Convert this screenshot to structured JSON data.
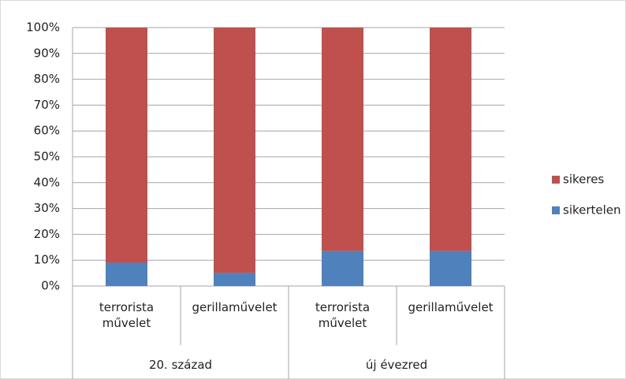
{
  "chart_data": {
    "type": "stacked_bar_100",
    "groups": [
      {
        "name": "20. század",
        "categories": [
          "terrorista művelet",
          "gerillaművelet"
        ]
      },
      {
        "name": "új évezred",
        "categories": [
          "terrorista művelet",
          "gerillaművelet"
        ]
      }
    ],
    "series": [
      {
        "name": "sikertelen",
        "color": "#4f81bd",
        "values": [
          9,
          5,
          13.5,
          13.5
        ]
      },
      {
        "name": "sikeres",
        "color": "#c0504d",
        "values": [
          91,
          95,
          86.5,
          86.5
        ]
      }
    ],
    "ylim": [
      0,
      100
    ],
    "yticks": [
      {
        "value": 0,
        "label": "0%"
      },
      {
        "value": 10,
        "label": "10%"
      },
      {
        "value": 20,
        "label": "20%"
      },
      {
        "value": 30,
        "label": "30%"
      },
      {
        "value": 40,
        "label": "40%"
      },
      {
        "value": 50,
        "label": "50%"
      },
      {
        "value": 60,
        "label": "60%"
      },
      {
        "value": 70,
        "label": "70%"
      },
      {
        "value": 80,
        "label": "80%"
      },
      {
        "value": 90,
        "label": "90%"
      },
      {
        "value": 100,
        "label": "100%"
      }
    ],
    "grid": true,
    "legend": "right"
  }
}
